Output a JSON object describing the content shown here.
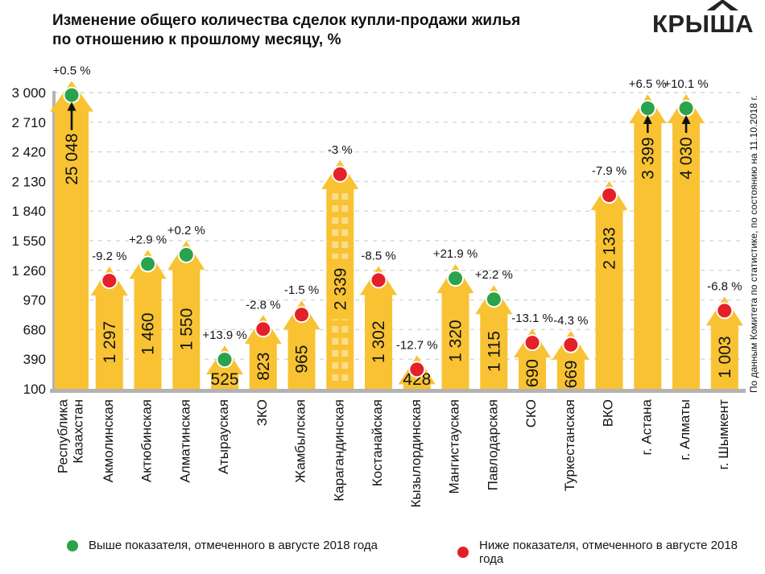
{
  "header": {
    "title_line1": "Изменение общего количества сделок купли-продажи жилья",
    "title_line2": "по отношению к прошлому месяцу, %",
    "logo": {
      "pre": "КРЫ",
      "roof_letter": "Ш",
      "post": "А"
    }
  },
  "legend": {
    "above": "Выше показателя, отмеченного в августе 2018 года",
    "below": "Ниже показателя, отмеченного в августе 2018 года"
  },
  "source_note": "По данным Комитета по статистике, по состоянию на 11.10.2018 г.",
  "colors": {
    "bar": "#f8c233",
    "windows": "rgba(255,255,255,0.42)",
    "up": "#2ba34b",
    "down": "#e42028",
    "axis": "#b3b3b3",
    "grid": "#d9d9d9",
    "text": "#141414",
    "arrow": "#111111"
  },
  "chart_data": {
    "type": "bar",
    "title": "Изменение общего количества сделок купли-продажи жилья по отношению к прошлому месяцу, %",
    "xlabel": "",
    "ylabel": "",
    "ylim": [
      100,
      3000
    ],
    "grid": "dashed-horizontal",
    "legend_position": "bottom",
    "y_ticks": [
      {
        "value": 3000,
        "label": "3 000"
      },
      {
        "value": 2710,
        "label": "2 710"
      },
      {
        "value": 2420,
        "label": "2 420"
      },
      {
        "value": 2130,
        "label": "2 130"
      },
      {
        "value": 1840,
        "label": "1 840"
      },
      {
        "value": 1550,
        "label": "1 550"
      },
      {
        "value": 1260,
        "label": "1 260"
      },
      {
        "value": 970,
        "label": "970"
      },
      {
        "value": 680,
        "label": "680"
      },
      {
        "value": 390,
        "label": "390"
      },
      {
        "value": 100,
        "label": "100"
      }
    ],
    "bars": [
      {
        "region": "Республика Казахстан",
        "region_lines": [
          "Республика",
          "Казахстан"
        ],
        "value": 25048,
        "value_label": "25 048",
        "pct_label": "+0.5 %",
        "direction": "up",
        "off_scale": true,
        "wide": true
      },
      {
        "region": "Акмолинская",
        "value": 1297,
        "value_label": "1 297",
        "pct_label": "-9.2 %",
        "direction": "down"
      },
      {
        "region": "Актюбинская",
        "value": 1460,
        "value_label": "1 460",
        "pct_label": "+2.9 %",
        "direction": "up"
      },
      {
        "region": "Алматинская",
        "value": 1550,
        "value_label": "1 550",
        "pct_label": "+0.2 %",
        "direction": "up"
      },
      {
        "region": "Атырауская",
        "value": 525,
        "value_label": "525",
        "pct_label": "+13.9 %",
        "direction": "up",
        "label_horizontal": true
      },
      {
        "region": "ЗКО",
        "value": 823,
        "value_label": "823",
        "pct_label": "-2.8 %",
        "direction": "down"
      },
      {
        "region": "Жамбылская",
        "value": 965,
        "value_label": "965",
        "pct_label": "-1.5 %",
        "direction": "down"
      },
      {
        "region": "Карагандинская",
        "value": 2339,
        "value_label": "2 339",
        "pct_label": "-3 %",
        "direction": "down",
        "windows": true
      },
      {
        "region": "Костанайская",
        "value": 1302,
        "value_label": "1 302",
        "pct_label": "-8.5 %",
        "direction": "down"
      },
      {
        "region": "Кызылординская",
        "value": 428,
        "value_label": "428",
        "pct_label": "-12.7 %",
        "direction": "down",
        "label_horizontal": true
      },
      {
        "region": "Мангистауская",
        "value": 1320,
        "value_label": "1 320",
        "pct_label": "+21.9 %",
        "direction": "up"
      },
      {
        "region": "Павлодарская",
        "value": 1115,
        "value_label": "1 115",
        "pct_label": "+2.2 %",
        "direction": "up"
      },
      {
        "region": "СКО",
        "value": 690,
        "value_label": "690",
        "pct_label": "-13.1 %",
        "direction": "down"
      },
      {
        "region": "Туркестанская",
        "value": 669,
        "value_label": "669",
        "pct_label": "-4.3 %",
        "direction": "down"
      },
      {
        "region": "ВКО",
        "value": 2133,
        "value_label": "2 133",
        "pct_label": "-7.9 %",
        "direction": "down",
        "label_near_top": true
      },
      {
        "region": "г. Астана",
        "value": 3399,
        "value_label": "3 399",
        "pct_label": "+6.5 %",
        "direction": "up",
        "off_scale": true
      },
      {
        "region": "г. Алматы",
        "value": 4030,
        "value_label": "4 030",
        "pct_label": "+10.1 %",
        "direction": "up",
        "off_scale": true
      },
      {
        "region": "г. Шымкент",
        "value": 1003,
        "value_label": "1 003",
        "pct_label": "-6.8 %",
        "direction": "down"
      }
    ]
  }
}
